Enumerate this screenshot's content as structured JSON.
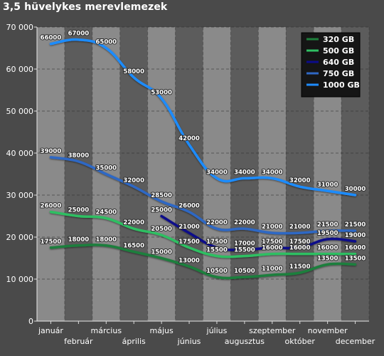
{
  "chart_data": {
    "type": "line",
    "title": "3,5 hüvelykes merevlemezek",
    "ylim": [
      0,
      70000
    ],
    "y_ticks": [
      0,
      10000,
      20000,
      30000,
      40000,
      50000,
      60000,
      70000
    ],
    "y_tick_labels": [
      "0",
      "10 000",
      "20 000",
      "30 000",
      "40 000",
      "50 000",
      "60 000",
      "70 000"
    ],
    "categories": [
      "január",
      "február",
      "március",
      "április",
      "május",
      "június",
      "július",
      "augusztus",
      "szeptember",
      "október",
      "november",
      "december"
    ],
    "grid": true,
    "legend_position": "top-right",
    "series": [
      {
        "name": "320 GB",
        "color": "#1e7f3c",
        "values": [
          17500,
          18000,
          18000,
          16500,
          15000,
          13000,
          10500,
          10500,
          11000,
          11500,
          13500,
          13500
        ]
      },
      {
        "name": "500 GB",
        "color": "#2fbf62",
        "values": [
          26000,
          25000,
          24500,
          22000,
          20500,
          17500,
          15500,
          15500,
          16000,
          16000,
          16000,
          16000
        ]
      },
      {
        "name": "640 GB",
        "color": "#0c0c8a",
        "values": [
          null,
          null,
          null,
          null,
          25000,
          21000,
          17500,
          17000,
          17500,
          17500,
          19500,
          19000
        ]
      },
      {
        "name": "750 GB",
        "color": "#2f67c4",
        "values": [
          39000,
          38000,
          35000,
          32000,
          28500,
          26000,
          22000,
          22000,
          21000,
          21000,
          21500,
          21500
        ]
      },
      {
        "name": "1000 GB",
        "color": "#1e8cff",
        "values": [
          66000,
          67000,
          65000,
          58000,
          53000,
          42000,
          34000,
          34000,
          34000,
          32000,
          31000,
          30000
        ]
      }
    ]
  }
}
